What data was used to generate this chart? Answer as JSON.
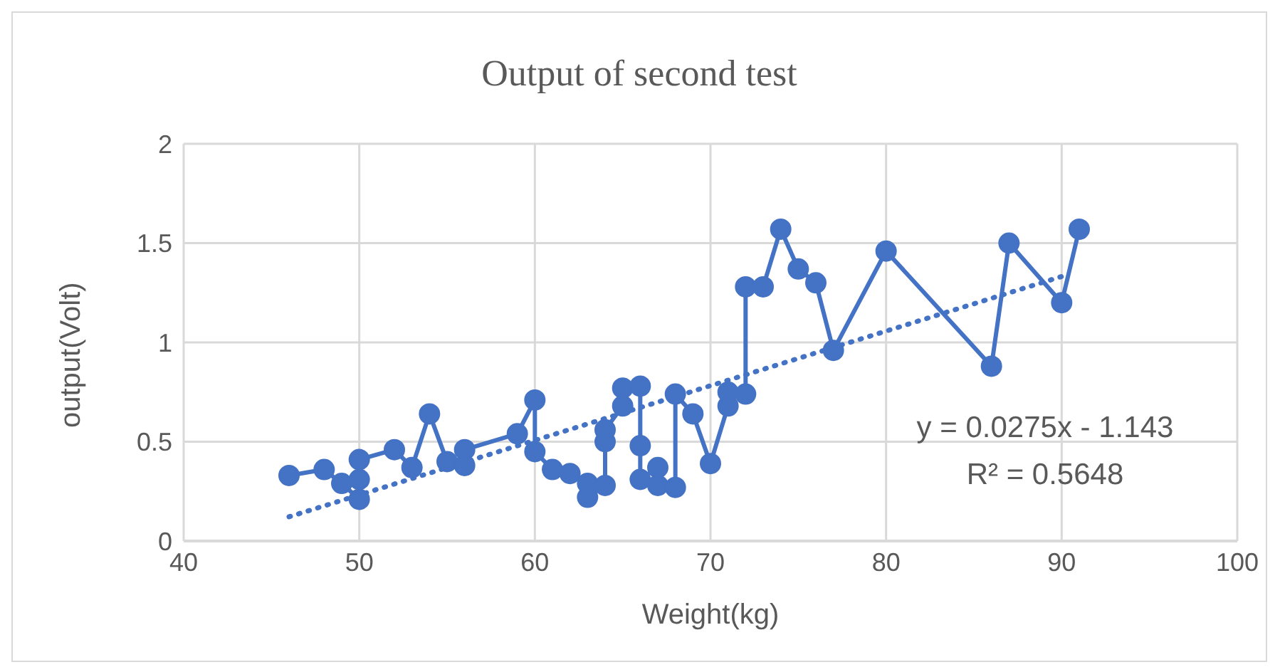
{
  "chart_data": {
    "type": "line",
    "title": "Output of second test",
    "xlabel": "Weight(kg)",
    "ylabel": "output(Volt)",
    "xlim": [
      40,
      100
    ],
    "xticks": [
      40,
      50,
      60,
      70,
      80,
      90,
      100
    ],
    "ylim": [
      0,
      2
    ],
    "yticks": [
      0,
      0.5,
      1,
      1.5,
      2
    ],
    "grid": true,
    "legend": false,
    "marker": "circle",
    "series": [
      {
        "color": "#4472c4",
        "line_style": "solid",
        "x": [
          46,
          48,
          49,
          50,
          50,
          50,
          52,
          53,
          54,
          55,
          56,
          56,
          59,
          60,
          60,
          61,
          62,
          63,
          63,
          64,
          64,
          64,
          65,
          65,
          66,
          66,
          66,
          67,
          67,
          68,
          68,
          69,
          70,
          71,
          71,
          72,
          72,
          73,
          74,
          75,
          76,
          77,
          80,
          86,
          87,
          90,
          91
        ],
        "values": [
          0.33,
          0.36,
          0.29,
          0.21,
          0.31,
          0.41,
          0.46,
          0.37,
          0.64,
          0.4,
          0.38,
          0.46,
          0.54,
          0.71,
          0.45,
          0.36,
          0.34,
          0.29,
          0.22,
          0.28,
          0.5,
          0.56,
          0.68,
          0.77,
          0.78,
          0.48,
          0.31,
          0.37,
          0.28,
          0.27,
          0.74,
          0.64,
          0.39,
          0.68,
          0.75,
          0.74,
          1.28,
          1.28,
          1.57,
          1.37,
          1.3,
          0.96,
          1.46,
          0.88,
          1.5,
          1.2,
          1.57
        ]
      },
      {
        "color": "#4472c4",
        "line_style": "dotted",
        "marker": "none",
        "x": [
          46,
          90
        ],
        "values": [
          0.122,
          1.332
        ]
      }
    ],
    "annotations": [
      "y = 0.0275x - 1.143",
      "R² = 0.5648"
    ]
  }
}
